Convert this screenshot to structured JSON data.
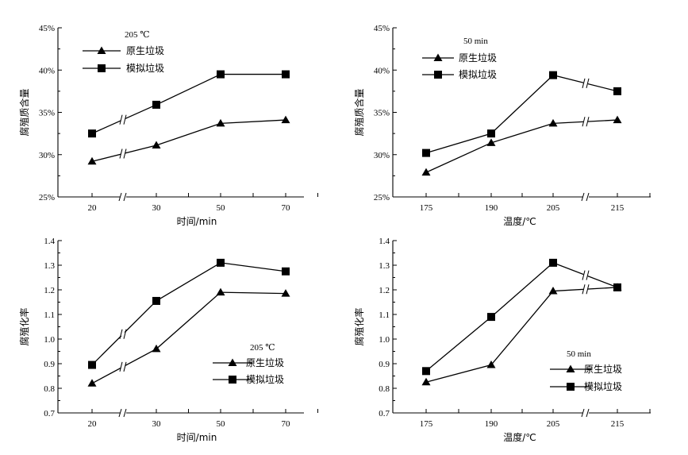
{
  "chart_data": [
    {
      "type": "line",
      "panel": "top-left",
      "legend_title": "205 ℃",
      "legend_position": "top-left",
      "xlabel": "时间/min",
      "ylabel": "腐殖质含量",
      "categories": [
        "20",
        "30",
        "50",
        "70"
      ],
      "axis_break": "between 20 and 30",
      "yticks": [
        "25%",
        "30%",
        "35%",
        "40%",
        "45%"
      ],
      "ylim": [
        25,
        45
      ],
      "series": [
        {
          "name": "原生垃圾",
          "marker": "triangle",
          "values": [
            29.2,
            31.1,
            33.7,
            34.1
          ]
        },
        {
          "name": "模拟垃圾",
          "marker": "square",
          "values": [
            32.5,
            35.9,
            39.5,
            39.5
          ]
        }
      ]
    },
    {
      "type": "line",
      "panel": "top-right",
      "legend_title": "50 min",
      "legend_position": "top-left",
      "xlabel": "温度/℃",
      "ylabel": "腐殖质含量",
      "categories": [
        "175",
        "190",
        "205",
        "215"
      ],
      "axis_break": "between 205 and 215",
      "yticks": [
        "25%",
        "30%",
        "35%",
        "40%",
        "45%"
      ],
      "ylim": [
        25,
        45
      ],
      "series": [
        {
          "name": "原生垃圾",
          "marker": "triangle",
          "values": [
            27.9,
            31.4,
            33.7,
            34.1
          ]
        },
        {
          "name": "模拟垃圾",
          "marker": "square",
          "values": [
            30.2,
            32.5,
            39.4,
            37.5
          ]
        }
      ]
    },
    {
      "type": "line",
      "panel": "bottom-left",
      "legend_title": "205 ℃",
      "legend_position": "bottom-right",
      "xlabel": "时间/min",
      "ylabel": "腐殖化率",
      "categories": [
        "20",
        "30",
        "50",
        "70"
      ],
      "axis_break": "between 20 and 30",
      "yticks": [
        "0.7",
        "0.8",
        "0.9",
        "1.0",
        "1.1",
        "1.2",
        "1.3",
        "1.4"
      ],
      "ylim": [
        0.7,
        1.4
      ],
      "series": [
        {
          "name": "原生垃圾",
          "marker": "triangle",
          "values": [
            0.82,
            0.96,
            1.19,
            1.185
          ]
        },
        {
          "name": "模拟垃圾",
          "marker": "square",
          "values": [
            0.895,
            1.155,
            1.31,
            1.275
          ]
        }
      ]
    },
    {
      "type": "line",
      "panel": "bottom-right",
      "legend_title": "50 min",
      "legend_position": "bottom-right",
      "xlabel": "温度/℃",
      "ylabel": "腐殖化率",
      "categories": [
        "175",
        "190",
        "205",
        "215"
      ],
      "axis_break": "between 205 and 215",
      "yticks": [
        "0.7",
        "0.8",
        "0.9",
        "1.0",
        "1.1",
        "1.2",
        "1.3",
        "1.4"
      ],
      "ylim": [
        0.7,
        1.4
      ],
      "series": [
        {
          "name": "原生垃圾",
          "marker": "triangle",
          "values": [
            0.825,
            0.895,
            1.195,
            1.21
          ]
        },
        {
          "name": "模拟垃圾",
          "marker": "square",
          "values": [
            0.87,
            1.09,
            1.31,
            1.21
          ]
        }
      ]
    }
  ]
}
